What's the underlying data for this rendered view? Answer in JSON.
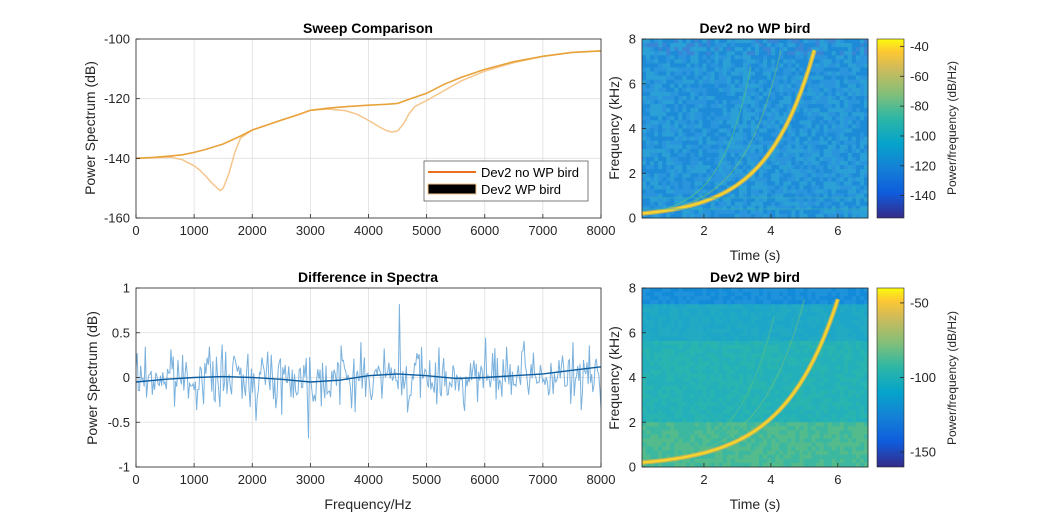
{
  "chart_data": [
    {
      "id": "sweep",
      "type": "line",
      "title": "Sweep Comparison",
      "xlabel": "",
      "ylabel": "Power Spectrum (dB)",
      "xlim": [
        0,
        8000
      ],
      "ylim": [
        -160,
        -100
      ],
      "xticks": [
        0,
        1000,
        2000,
        3000,
        4000,
        5000,
        6000,
        7000,
        8000
      ],
      "yticks": [
        -160,
        -140,
        -120,
        -100
      ],
      "grid": true,
      "legend_position": "bottom-right",
      "series": [
        {
          "name": "Dev2 no WP bird",
          "color": "#e8a23a",
          "x": [
            0,
            300,
            600,
            800,
            1000,
            1200,
            1500,
            1800,
            2000,
            2200,
            2500,
            2800,
            3000,
            3300,
            3600,
            4000,
            4300,
            4500,
            4700,
            5000,
            5300,
            5600,
            6000,
            6500,
            7000,
            7500,
            8000
          ],
          "y": [
            -140,
            -139.7,
            -139.2,
            -138.8,
            -138,
            -137,
            -135.2,
            -132.5,
            -130.5,
            -129.2,
            -127.2,
            -125.3,
            -123.9,
            -123.2,
            -122.7,
            -122.2,
            -121.9,
            -121.6,
            -120.2,
            -118.2,
            -115.2,
            -112.8,
            -110.2,
            -107.6,
            -105.8,
            -104.5,
            -104
          ]
        },
        {
          "name": "Dev2 WP bird",
          "color": "#f6c68d",
          "x": [
            0,
            300,
            600,
            800,
            1000,
            1100,
            1200,
            1300,
            1400,
            1450,
            1500,
            1600,
            1700,
            1800,
            2000,
            2200,
            2500,
            2800,
            3000,
            3300,
            3600,
            3800,
            4000,
            4200,
            4300,
            4400,
            4500,
            4600,
            4700,
            4800,
            5000,
            5200,
            5400,
            5600,
            6000,
            6500,
            7000,
            7500,
            8000
          ],
          "y": [
            -140,
            -139.8,
            -139.6,
            -140.5,
            -142.5,
            -144,
            -146,
            -148.2,
            -150,
            -150.8,
            -150,
            -145,
            -138,
            -133.2,
            -130.5,
            -129.2,
            -127.2,
            -125.3,
            -123.9,
            -123.5,
            -124,
            -125.2,
            -127.3,
            -129.6,
            -130.6,
            -131.2,
            -130.8,
            -128.5,
            -125,
            -122.6,
            -120.6,
            -118.4,
            -116.2,
            -114,
            -110.8,
            -107.9,
            -105.8,
            -104.5,
            -104
          ]
        }
      ]
    },
    {
      "id": "diff",
      "type": "line",
      "title": "Difference in Spectra",
      "xlabel": "Frequency/Hz",
      "ylabel": "Power Spectrum (dB)",
      "xlim": [
        0,
        8000
      ],
      "ylim": [
        -1,
        1
      ],
      "xticks": [
        0,
        1000,
        2000,
        3000,
        4000,
        5000,
        6000,
        7000,
        8000
      ],
      "yticks": [
        -1,
        -0.5,
        0,
        0.5,
        1
      ],
      "grid": true,
      "series": [
        {
          "color": "#7ab1dd",
          "noisy": true,
          "x_range": [
            0,
            8000
          ],
          "n_points": 400,
          "std": 0.22,
          "min": -0.68,
          "max": 0.82
        },
        {
          "color": "#0c5c9e",
          "x": [
            0,
            500,
            1000,
            1500,
            2000,
            2500,
            3000,
            3500,
            4000,
            4500,
            5000,
            5500,
            6000,
            6500,
            7000,
            7500,
            8000
          ],
          "y": [
            -0.05,
            -0.02,
            0.0,
            0.01,
            0.0,
            -0.02,
            -0.05,
            -0.03,
            0.02,
            0.04,
            0.02,
            -0.01,
            0.0,
            0.02,
            0.04,
            0.08,
            0.12
          ]
        }
      ]
    },
    {
      "id": "spec_no_wp",
      "type": "heatmap",
      "title": "Dev2 no WP bird",
      "xlabel": "Time (s)",
      "ylabel": "Frequency (kHz)",
      "xlim": [
        0.15,
        6.9
      ],
      "ylim": [
        0,
        8
      ],
      "xticks": [
        2,
        4,
        6
      ],
      "yticks": [
        0,
        2,
        4,
        6,
        8
      ],
      "sweep_end_time": 5.3,
      "sweep_end_freq": 7.5,
      "colorbar": {
        "label": "Power/frequency (dB/Hz)",
        "range": [
          -155,
          -35
        ],
        "ticks": [
          -140,
          -120,
          -100,
          -80,
          -60,
          -40
        ]
      }
    },
    {
      "id": "spec_wp",
      "type": "heatmap",
      "title": "Dev2 WP bird",
      "xlabel": "Time (s)",
      "ylabel": "Frequency (kHz)",
      "xlim": [
        0.15,
        6.9
      ],
      "ylim": [
        0,
        8
      ],
      "xticks": [
        2,
        4,
        6
      ],
      "yticks": [
        0,
        2,
        4,
        6,
        8
      ],
      "sweep_end_time": 6.0,
      "sweep_end_freq": 7.5,
      "colorbar": {
        "label": "Power/frequency (dB/Hz)",
        "range": [
          -160,
          -40
        ],
        "ticks": [
          -150,
          -100,
          -50
        ]
      }
    }
  ]
}
